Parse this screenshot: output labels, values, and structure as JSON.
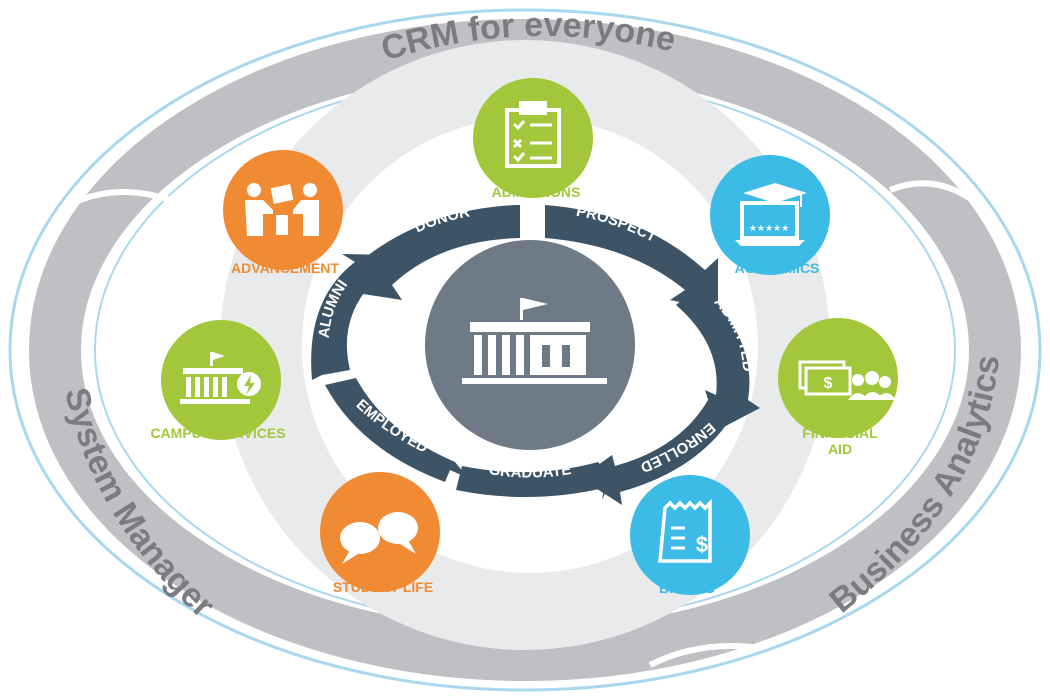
{
  "outer_ring": {
    "top_label": "CRM for everyone",
    "left_label": "System Manager",
    "right_label": "Business Analytics"
  },
  "cycle_stages": [
    "DONOR",
    "PROSPECT",
    "ADMITTED",
    "ENROLLED",
    "GRADUATE",
    "EMPLOYED",
    "ALUMNI"
  ],
  "center": {
    "icon": "university-building-icon"
  },
  "nodes": {
    "admissions": {
      "label": "ADMISSIONS",
      "icon": "clipboard-checklist-icon",
      "color": "#a3c73a"
    },
    "academics": {
      "label": "ACADEMICS",
      "icon": "graduation-cap-laptop-icon",
      "color": "#3bbbe6"
    },
    "financial_aid": {
      "label_line1": "FINANCIAL",
      "label_line2": "AID",
      "icon": "money-people-icon",
      "color": "#a3c73a"
    },
    "billing": {
      "label": "BILLING",
      "icon": "receipt-dollar-icon",
      "color": "#3bbbe6"
    },
    "student_life": {
      "label": "STUDENT LIFE",
      "icon": "speech-bubbles-icon",
      "color": "#f08a33"
    },
    "campus_services": {
      "label": "CAMPUS SERVICES",
      "icon": "building-lightning-icon",
      "color": "#a3c73a"
    },
    "advancement": {
      "label": "ADVANCEMENT",
      "icon": "handshake-people-icon",
      "color": "#f08a33"
    }
  },
  "colors": {
    "ring_gray": "#bfc0c4",
    "ring_text": "#7a7c80",
    "ring_outline": "#a9d8ee",
    "inner_disc": "#e9eaeb",
    "cycle_arrow": "#3d5466",
    "center_disc": "#6e7b86"
  }
}
